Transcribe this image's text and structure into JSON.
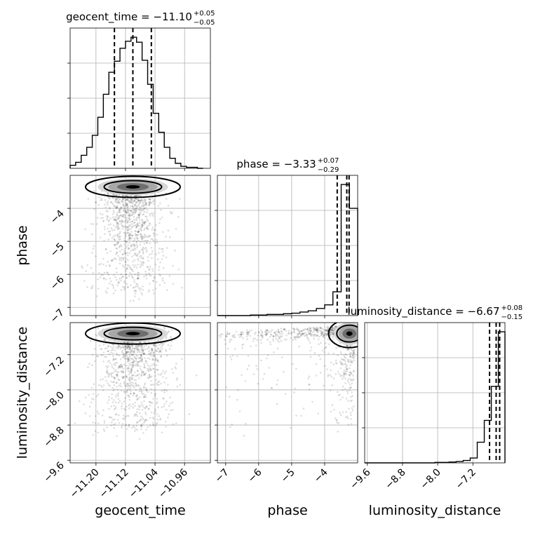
{
  "chart_data": {
    "type": "corner",
    "parameters": [
      "geocent_time",
      "phase",
      "luminosity_distance"
    ],
    "titles": [
      {
        "label": "geocent_time = −11.10",
        "plus": "+0.05",
        "minus": "−0.05"
      },
      {
        "label": "phase = −3.33",
        "plus": "+0.07",
        "minus": "−0.29"
      },
      {
        "label": "luminosity_distance = −6.67",
        "plus": "+0.08",
        "minus": "−0.15"
      }
    ],
    "ranges": {
      "geocent_time": [
        -11.27,
        -10.89
      ],
      "phase": [
        -7.25,
        -3.0
      ],
      "luminosity_distance": [
        -9.66,
        -6.47
      ]
    },
    "ticks": {
      "geocent_time": {
        "values": [
          -11.2,
          -11.12,
          -11.04,
          -10.96
        ],
        "labels": [
          "−11.20",
          "−11.12",
          "−11.04",
          "−10.96"
        ]
      },
      "phase_x": {
        "values": [
          -7,
          -6,
          -5,
          -4
        ],
        "labels": [
          "−7",
          "−6",
          "−5",
          "−4"
        ]
      },
      "phase_y": {
        "values": [
          -7,
          -6,
          -5,
          -4
        ],
        "labels": [
          "−7",
          "−6",
          "−5",
          "−4"
        ]
      },
      "luminosity_distance_x": {
        "values": [
          -9.6,
          -8.8,
          -8.0,
          -7.2
        ],
        "labels": [
          "−9.6",
          "−8.8",
          "−8.0",
          "−7.2"
        ]
      },
      "luminosity_distance_y": {
        "values": [
          -9.6,
          -8.8,
          -8.0,
          -7.2
        ],
        "labels": [
          "−9.6",
          "−8.8",
          "−8.0",
          "−7.2"
        ]
      }
    },
    "quantiles": {
      "geocent_time": [
        -11.15,
        -11.1,
        -11.05
      ],
      "phase": [
        -3.62,
        -3.33,
        -3.26
      ],
      "luminosity_distance": [
        -6.82,
        -6.67,
        -6.59
      ]
    },
    "histograms": {
      "geocent_time": {
        "edges": [
          -11.27,
          -11.255,
          -11.24,
          -11.225,
          -11.21,
          -11.195,
          -11.18,
          -11.165,
          -11.15,
          -11.135,
          -11.12,
          -11.105,
          -11.09,
          -11.075,
          -11.06,
          -11.045,
          -11.03,
          -11.015,
          -11.0,
          -10.985,
          -10.97,
          -10.955,
          -10.94,
          -10.925,
          -10.91
        ],
        "counts": [
          3,
          6,
          13,
          21,
          33,
          51,
          74,
          96,
          107,
          120,
          127,
          131,
          126,
          108,
          84,
          55,
          36,
          21,
          10,
          5,
          2,
          1,
          1,
          0
        ]
      },
      "phase": {
        "edges": [
          -7.25,
          -7.0,
          -6.75,
          -6.5,
          -6.25,
          -6.0,
          -5.75,
          -5.5,
          -5.25,
          -5.0,
          -4.75,
          -4.5,
          -4.25,
          -4.0,
          -3.75,
          -3.5,
          -3.25,
          -3.0
        ],
        "counts": [
          0,
          0,
          0,
          0,
          0.6,
          0.6,
          1.3,
          1.3,
          2.0,
          2.6,
          3.9,
          5.2,
          7.8,
          11.7,
          26,
          143,
          117
        ]
      },
      "luminosity_distance": {
        "edges": [
          -9.66,
          -9.5,
          -9.34,
          -9.18,
          -9.02,
          -8.86,
          -8.7,
          -8.54,
          -8.38,
          -8.22,
          -8.06,
          -7.9,
          -7.74,
          -7.58,
          -7.42,
          -7.26,
          -7.1,
          -6.94,
          -6.78,
          -6.62,
          -6.47
        ],
        "counts": [
          0,
          0,
          0,
          0,
          0,
          0,
          0,
          0,
          0,
          0,
          0.4,
          0.4,
          0.7,
          1.1,
          2,
          4,
          17,
          35,
          63,
          108
        ]
      }
    },
    "correlations": {
      "phase_vs_geocent_time": {
        "mode": [
          -11.1,
          -3.35
        ]
      },
      "luminosity_distance_vs_geocent_time": {
        "mode": [
          -11.1,
          -6.72
        ]
      },
      "luminosity_distance_vs_phase": {
        "mode": [
          -3.25,
          -6.72
        ]
      }
    },
    "axis_labels": {
      "geocent_time": "geocent_time",
      "phase": "phase",
      "luminosity_distance": "luminosity_distance"
    },
    "grid": true
  }
}
